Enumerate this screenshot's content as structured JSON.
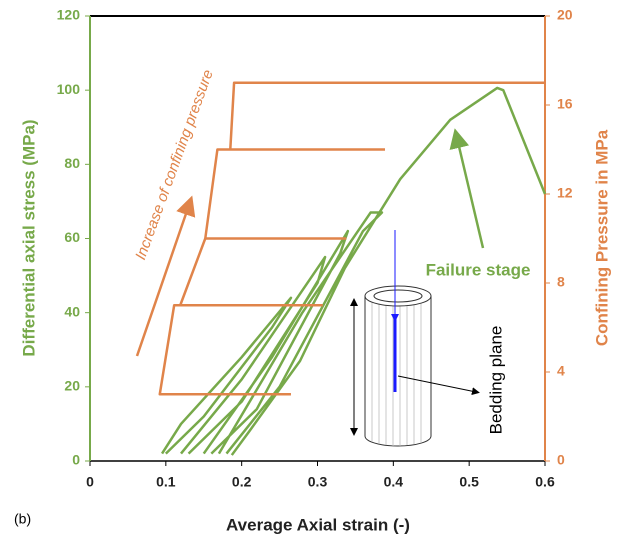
{
  "chart_data": {
    "type": "line",
    "xlabel": "Average Axial strain (-)",
    "ylabel": "Differential axial stress (MPa)",
    "y2label": "Confining Pressure in MPa",
    "xlim": [
      0,
      0.6
    ],
    "xticks": [
      0,
      0.1,
      0.2,
      0.3,
      0.4,
      0.5,
      0.6
    ],
    "ylim": [
      0,
      120
    ],
    "yticks": [
      0,
      20,
      40,
      60,
      80,
      100,
      120
    ],
    "y2lim": [
      0,
      20
    ],
    "y2ticks": [
      0,
      4,
      8,
      12,
      16,
      20
    ],
    "series": [
      {
        "color": "#77a94a",
        "x": [
          0.095,
          0.12,
          0.2,
          0.265,
          0.24,
          0.15,
          0.1,
          null,
          0.12,
          0.2,
          0.31,
          0.3,
          0.2,
          0.13,
          null,
          0.15,
          0.24,
          0.34,
          0.33,
          0.22,
          0.16,
          null,
          0.17,
          0.28,
          0.37,
          0.385,
          0.36,
          0.25,
          0.18,
          null,
          0.187,
          0.21,
          0.277,
          0.336,
          0.409,
          0.475,
          0.537,
          0.545,
          0.6
        ],
        "values": [
          2,
          10,
          28,
          44,
          36,
          12,
          2,
          null,
          2,
          22,
          55,
          48,
          16,
          2,
          null,
          2,
          28,
          62,
          56,
          14,
          2,
          null,
          2,
          40,
          67,
          67,
          62,
          20,
          2,
          null,
          1.6,
          8,
          27,
          52,
          76,
          92,
          100.6,
          100,
          72
        ]
      },
      {
        "color": "#e0844a",
        "axis": "y2",
        "x": [
          0.265,
          0.092,
          0.111,
          0.307,
          null,
          0.119,
          0.152,
          0.338,
          null,
          0.152,
          0.168,
          0.389,
          null,
          0.168,
          0.185,
          0.19,
          0.6
        ],
        "values": [
          3,
          3,
          7,
          7,
          null,
          7,
          10,
          10,
          null,
          10,
          14,
          14,
          null,
          14,
          14,
          17,
          17
        ]
      }
    ],
    "annotations": [
      "Failure stage",
      "Increase of confining pressure",
      "Bedding plane",
      "(b)"
    ]
  }
}
